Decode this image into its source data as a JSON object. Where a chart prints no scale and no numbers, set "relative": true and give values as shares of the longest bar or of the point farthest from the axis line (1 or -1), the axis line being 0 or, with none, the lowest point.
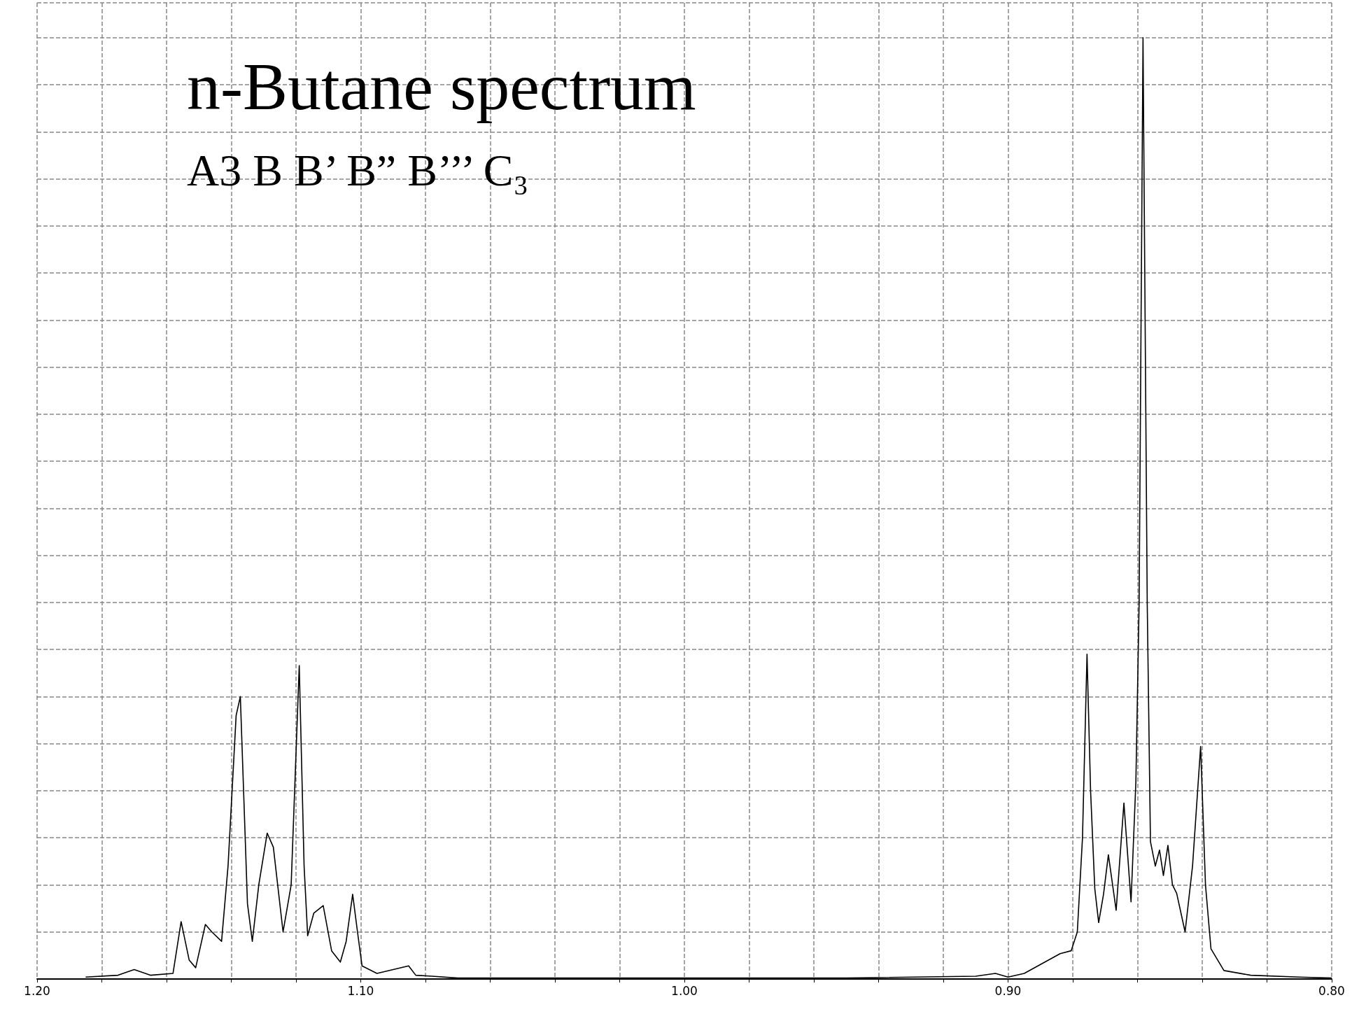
{
  "chart_data": {
    "type": "line",
    "title": "n-Butane spectrum",
    "subtitle": "A3 B B’ B” B’’’ C₃",
    "relative": true,
    "grid": true,
    "color": "#000000",
    "xlim": [
      1.2,
      0.8
    ],
    "xticks": [
      {
        "value": 1.2,
        "label": "1.20"
      },
      {
        "value": 1.18,
        "label": null
      },
      {
        "value": 1.16,
        "label": null
      },
      {
        "value": 1.14,
        "label": null
      },
      {
        "value": 1.12,
        "label": null
      },
      {
        "value": 1.1,
        "label": "1.10"
      },
      {
        "value": 1.08,
        "label": null
      },
      {
        "value": 1.06,
        "label": null
      },
      {
        "value": 1.04,
        "label": null
      },
      {
        "value": 1.02,
        "label": null
      },
      {
        "value": 1.0,
        "label": "1.00"
      },
      {
        "value": 0.98,
        "label": null
      },
      {
        "value": 0.96,
        "label": null
      },
      {
        "value": 0.94,
        "label": null
      },
      {
        "value": 0.92,
        "label": null
      },
      {
        "value": 0.9,
        "label": "0.90"
      },
      {
        "value": 0.88,
        "label": null
      },
      {
        "value": 0.86,
        "label": null
      },
      {
        "value": 0.84,
        "label": null
      },
      {
        "value": 0.82,
        "label": null
      },
      {
        "value": 0.8,
        "label": "0.80"
      }
    ],
    "x": [
      1.185,
      1.175,
      1.17,
      1.165,
      1.158,
      1.1555,
      1.153,
      1.151,
      1.148,
      1.146,
      1.143,
      1.141,
      1.1385,
      1.1372,
      1.135,
      1.1335,
      1.1315,
      1.1289,
      1.127,
      1.124,
      1.1215,
      1.119,
      1.1175,
      1.1164,
      1.1145,
      1.1116,
      1.109,
      1.1063,
      1.1045,
      1.1025,
      1.101,
      1.0996,
      1.095,
      1.0852,
      1.083,
      1.078,
      1.07,
      1.04,
      1.0,
      0.95,
      0.91,
      0.9039,
      0.9,
      0.895,
      0.8839,
      0.8805,
      0.8786,
      0.877,
      0.8756,
      0.8745,
      0.8732,
      0.872,
      0.8705,
      0.869,
      0.8666,
      0.8642,
      0.862,
      0.8605,
      0.8595,
      0.8583,
      0.857,
      0.856,
      0.8545,
      0.8532,
      0.852,
      0.8506,
      0.8492,
      0.8479,
      0.8453,
      0.843,
      0.8405,
      0.839,
      0.8373,
      0.8333,
      0.825,
      0.81,
      0.8
    ],
    "values": [
      0.002,
      0.004,
      0.01,
      0.004,
      0.006,
      0.061,
      0.02,
      0.012,
      0.058,
      0.05,
      0.04,
      0.12,
      0.28,
      0.3,
      0.08,
      0.04,
      0.1,
      0.155,
      0.14,
      0.05,
      0.1,
      0.333,
      0.12,
      0.046,
      0.07,
      0.078,
      0.03,
      0.018,
      0.04,
      0.09,
      0.05,
      0.014,
      0.006,
      0.014,
      0.004,
      0.003,
      0.001,
      0.001,
      0.001,
      0.001,
      0.003,
      0.006,
      0.002,
      0.006,
      0.027,
      0.03,
      0.05,
      0.15,
      0.345,
      0.2,
      0.096,
      0.06,
      0.09,
      0.132,
      0.073,
      0.187,
      0.082,
      0.21,
      0.4,
      1.0,
      0.4,
      0.146,
      0.12,
      0.137,
      0.11,
      0.142,
      0.1,
      0.091,
      0.05,
      0.12,
      0.247,
      0.1,
      0.032,
      0.009,
      0.004,
      0.002,
      0.001
    ]
  }
}
